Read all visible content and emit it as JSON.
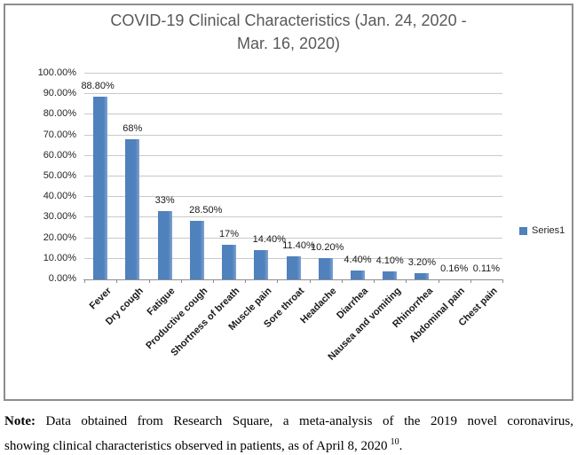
{
  "chart_data": {
    "type": "bar",
    "title": "COVID-19 Clinical Characteristics (Jan. 24, 2020 - Mar. 16, 2020)",
    "title_lines": [
      "COVID-19 Clinical Characteristics (Jan. 24, 2020 -",
      "Mar. 16, 2020)"
    ],
    "categories": [
      "Fever",
      "Dry cough",
      "Fatigue",
      "Productive cough",
      "Shortness of breath",
      "Muscle pain",
      "Sore throat",
      "Headache",
      "Diarrhea",
      "Nausea and vomiting",
      "Rhinorrhea",
      "Abdominal pain",
      "Chest pain"
    ],
    "series": [
      {
        "name": "Series1",
        "values": [
          88.8,
          68,
          33,
          28.5,
          17,
          14.4,
          11.4,
          10.2,
          4.4,
          4.1,
          3.2,
          0.16,
          0.11
        ]
      }
    ],
    "data_labels": [
      "88.80%",
      "68%",
      "33%",
      "28.50%",
      "17%",
      "14.40%",
      "11.40%",
      "10.20%",
      "4.40%",
      "4.10%",
      "3.20%",
      "0.16%",
      "0.11%"
    ],
    "y_tick_labels": [
      "0.00%",
      "10.00%",
      "20.00%",
      "30.00%",
      "40.00%",
      "50.00%",
      "60.00%",
      "70.00%",
      "80.00%",
      "90.00%",
      "100.00%"
    ],
    "xlabel": "",
    "ylabel": "",
    "ylim": [
      0,
      100
    ],
    "grid": true,
    "legend": {
      "position": "right",
      "entries": [
        "Series1"
      ]
    },
    "colors": {
      "bar": "#4f81bd",
      "bar_edge_highlight": "#7ca4d2",
      "gridline": "#c9c9c9",
      "axis": "#8e8e8e",
      "title": "#595959"
    }
  },
  "note": {
    "label": "Note:",
    "line1": "Data obtained from Research Square, a meta-analysis of the 2019 novel coronavirus,",
    "line2": "showing clinical characteristics observed in patients, as of April 8, 2020",
    "superscript": "10",
    "suffix": "."
  }
}
